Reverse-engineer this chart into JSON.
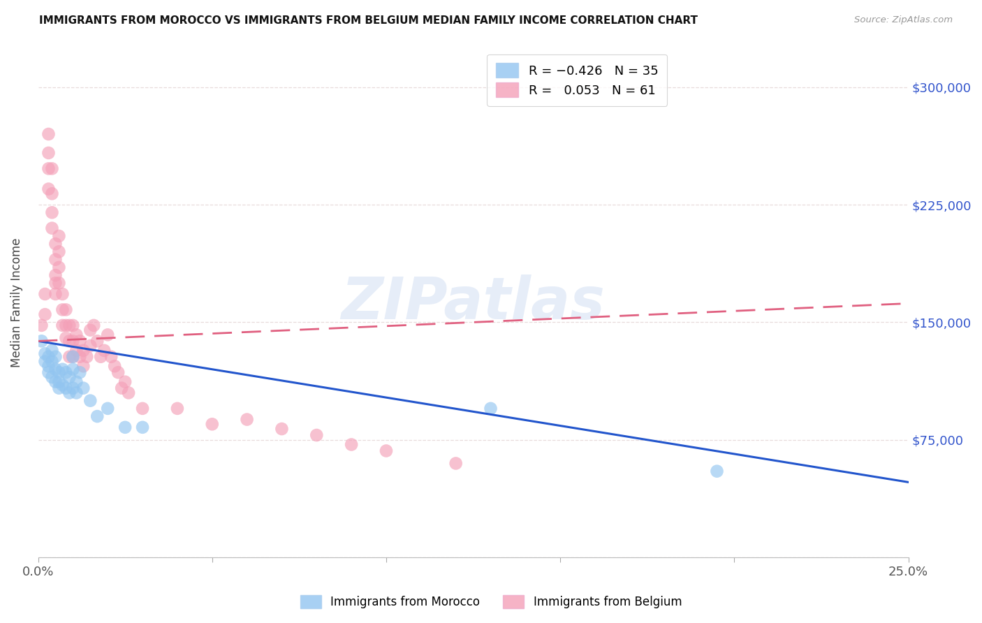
{
  "title": "IMMIGRANTS FROM MOROCCO VS IMMIGRANTS FROM BELGIUM MEDIAN FAMILY INCOME CORRELATION CHART",
  "source": "Source: ZipAtlas.com",
  "ylabel": "Median Family Income",
  "yticks": [
    0,
    75000,
    150000,
    225000,
    300000
  ],
  "ytick_labels": [
    "",
    "$75,000",
    "$150,000",
    "$225,000",
    "$300,000"
  ],
  "xlim": [
    0.0,
    0.25
  ],
  "ylim": [
    0,
    325000
  ],
  "color_morocco": "#92C5F0",
  "color_belgium": "#F4A0B8",
  "trendline_morocco": "#2255CC",
  "trendline_belgium": "#E06080",
  "watermark": "ZIPatlas",
  "morocco_x": [
    0.001,
    0.002,
    0.002,
    0.003,
    0.003,
    0.003,
    0.004,
    0.004,
    0.004,
    0.005,
    0.005,
    0.005,
    0.006,
    0.006,
    0.006,
    0.007,
    0.007,
    0.008,
    0.008,
    0.009,
    0.009,
    0.01,
    0.01,
    0.01,
    0.011,
    0.011,
    0.012,
    0.013,
    0.015,
    0.017,
    0.02,
    0.025,
    0.03,
    0.13,
    0.195
  ],
  "morocco_y": [
    138000,
    130000,
    125000,
    128000,
    122000,
    118000,
    132000,
    125000,
    115000,
    128000,
    120000,
    112000,
    118000,
    112000,
    108000,
    120000,
    110000,
    118000,
    108000,
    115000,
    105000,
    128000,
    120000,
    108000,
    112000,
    105000,
    118000,
    108000,
    100000,
    90000,
    95000,
    83000,
    83000,
    95000,
    55000
  ],
  "belgium_x": [
    0.001,
    0.002,
    0.002,
    0.003,
    0.003,
    0.003,
    0.003,
    0.004,
    0.004,
    0.004,
    0.004,
    0.005,
    0.005,
    0.005,
    0.005,
    0.005,
    0.006,
    0.006,
    0.006,
    0.006,
    0.007,
    0.007,
    0.007,
    0.008,
    0.008,
    0.008,
    0.009,
    0.009,
    0.009,
    0.01,
    0.01,
    0.01,
    0.011,
    0.011,
    0.012,
    0.012,
    0.013,
    0.013,
    0.014,
    0.015,
    0.015,
    0.016,
    0.017,
    0.018,
    0.019,
    0.02,
    0.021,
    0.022,
    0.023,
    0.024,
    0.025,
    0.026,
    0.03,
    0.04,
    0.05,
    0.06,
    0.07,
    0.08,
    0.09,
    0.1,
    0.12
  ],
  "belgium_y": [
    148000,
    168000,
    155000,
    270000,
    258000,
    248000,
    235000,
    248000,
    232000,
    220000,
    210000,
    200000,
    190000,
    180000,
    175000,
    168000,
    205000,
    195000,
    185000,
    175000,
    168000,
    158000,
    148000,
    158000,
    148000,
    140000,
    148000,
    138000,
    128000,
    148000,
    138000,
    128000,
    142000,
    132000,
    138000,
    128000,
    132000,
    122000,
    128000,
    145000,
    135000,
    148000,
    138000,
    128000,
    132000,
    142000,
    128000,
    122000,
    118000,
    108000,
    112000,
    105000,
    95000,
    95000,
    85000,
    88000,
    82000,
    78000,
    72000,
    68000,
    60000
  ],
  "morocco_trend_x": [
    0.0,
    0.25
  ],
  "morocco_trend_y": [
    138000,
    48000
  ],
  "belgium_trend_x": [
    0.0,
    0.25
  ],
  "belgium_trend_y": [
    138000,
    162000
  ]
}
